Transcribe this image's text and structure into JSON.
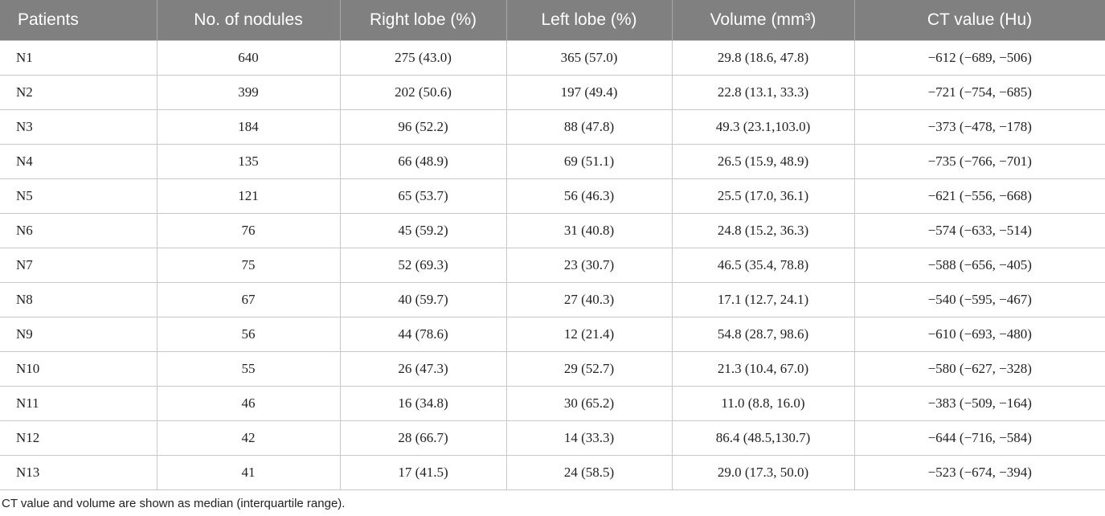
{
  "table": {
    "headers": [
      "Patients",
      "No. of nodules",
      "Right lobe (%)",
      "Left lobe (%)",
      "Volume (mm³)",
      "CT value (Hu)"
    ],
    "rows": [
      [
        "N1",
        "640",
        "275 (43.0)",
        "365 (57.0)",
        "29.8 (18.6, 47.8)",
        "−612 (−689, −506)"
      ],
      [
        "N2",
        "399",
        "202 (50.6)",
        "197 (49.4)",
        "22.8 (13.1, 33.3)",
        "−721 (−754, −685)"
      ],
      [
        "N3",
        "184",
        "96 (52.2)",
        "88 (47.8)",
        "49.3 (23.1,103.0)",
        "−373 (−478, −178)"
      ],
      [
        "N4",
        "135",
        "66 (48.9)",
        "69 (51.1)",
        "26.5 (15.9, 48.9)",
        "−735 (−766, −701)"
      ],
      [
        "N5",
        "121",
        "65 (53.7)",
        "56 (46.3)",
        "25.5 (17.0, 36.1)",
        "−621 (−556, −668)"
      ],
      [
        "N6",
        "76",
        "45 (59.2)",
        "31 (40.8)",
        "24.8 (15.2, 36.3)",
        "−574 (−633, −514)"
      ],
      [
        "N7",
        "75",
        "52 (69.3)",
        "23 (30.7)",
        "46.5 (35.4, 78.8)",
        "−588 (−656, −405)"
      ],
      [
        "N8",
        "67",
        "40 (59.7)",
        "27 (40.3)",
        "17.1 (12.7, 24.1)",
        "−540 (−595, −467)"
      ],
      [
        "N9",
        "56",
        "44 (78.6)",
        "12 (21.4)",
        "54.8 (28.7, 98.6)",
        "−610 (−693, −480)"
      ],
      [
        "N10",
        "55",
        "26 (47.3)",
        "29 (52.7)",
        "21.3 (10.4, 67.0)",
        "−580 (−627, −328)"
      ],
      [
        "N11",
        "46",
        "16 (34.8)",
        "30 (65.2)",
        "11.0 (8.8, 16.0)",
        "−383 (−509, −164)"
      ],
      [
        "N12",
        "42",
        "28 (66.7)",
        "14 (33.3)",
        "86.4 (48.5,130.7)",
        "−644 (−716, −584)"
      ],
      [
        "N13",
        "41",
        "17 (41.5)",
        "24 (58.5)",
        "29.0 (17.3, 50.0)",
        "−523 (−674, −394)"
      ]
    ],
    "footnote": "CT value and volume are shown as median (interquartile range)."
  }
}
